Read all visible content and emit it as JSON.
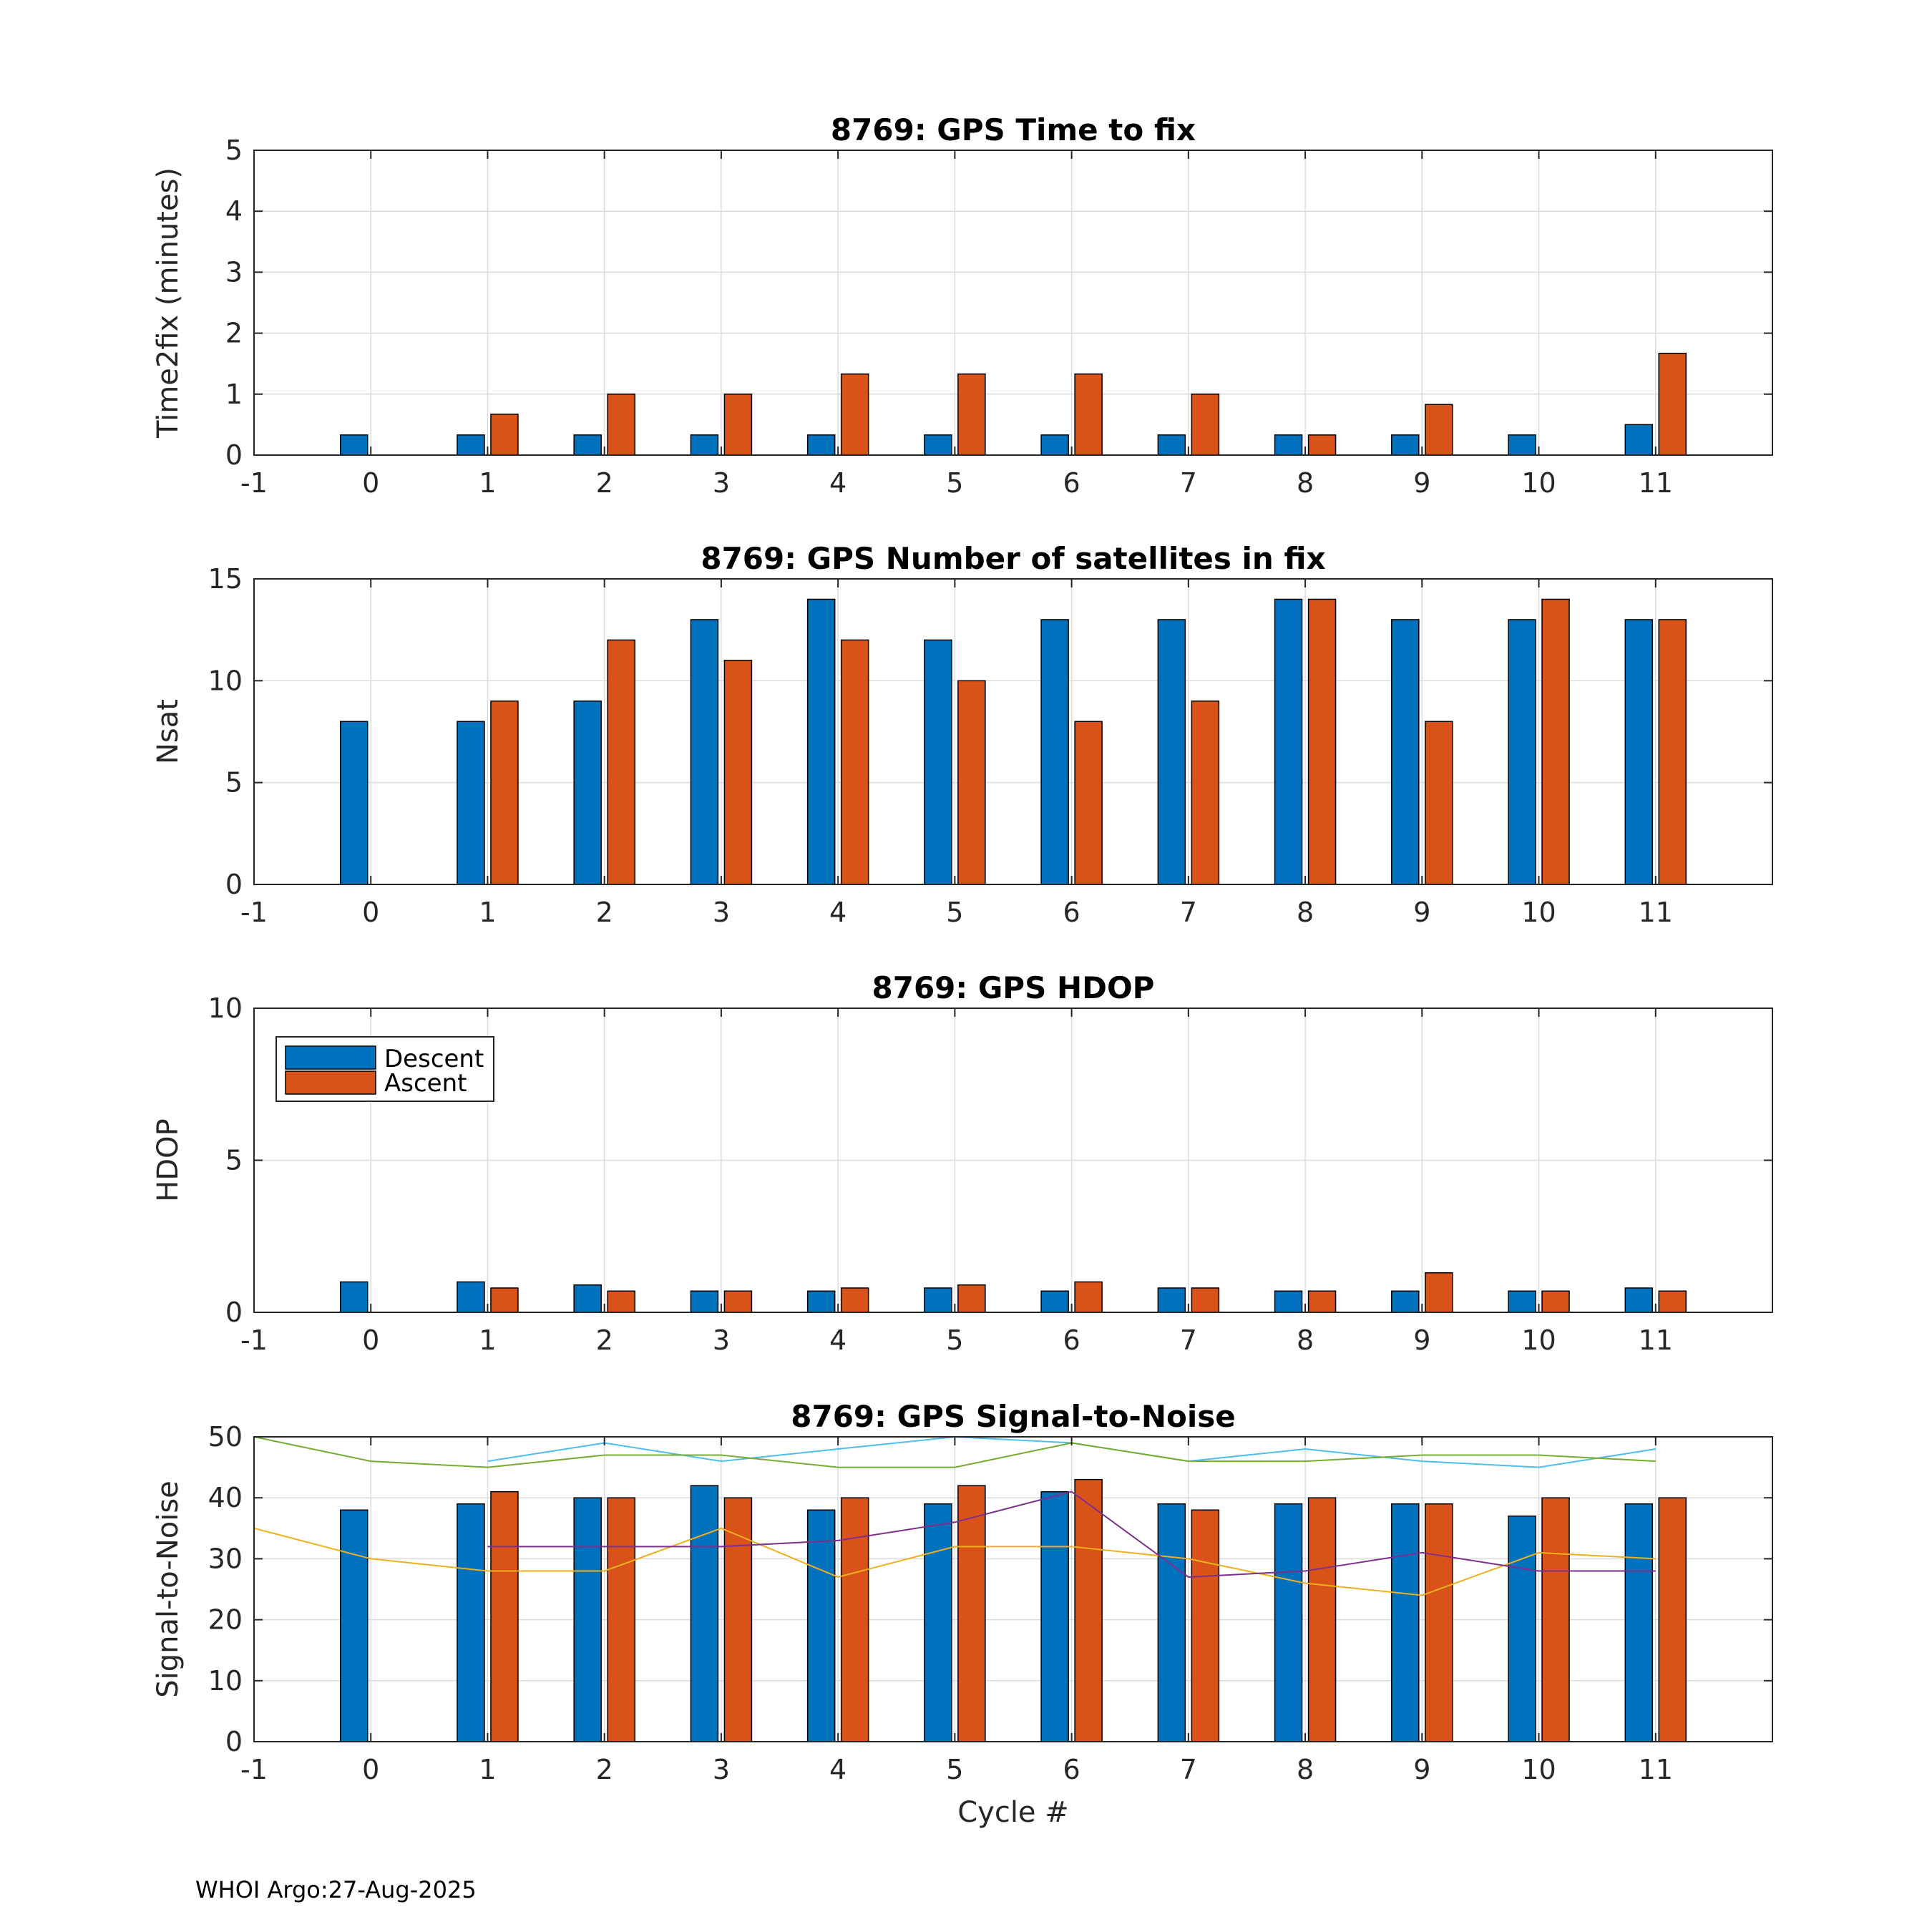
{
  "footer": "WHOI Argo:27-Aug-2025",
  "colors": {
    "descent": "#0072BD",
    "ascent": "#D95319",
    "grid": "#dcdcdc",
    "axis": "#262626",
    "snr_lines": [
      "#4DBEEE",
      "#77AC30",
      "#EDB120",
      "#7E2F8E"
    ]
  },
  "legend": {
    "entries": [
      "Descent",
      "Ascent"
    ],
    "location": "top-left of HDOP panel"
  },
  "chart_data": [
    {
      "type": "bar",
      "title": "8769: GPS Time to fix",
      "ylabel": "Time2fix (minutes)",
      "xlabel": "",
      "xlim": [
        -1,
        12
      ],
      "ylim": [
        0,
        5
      ],
      "xticks": [
        -1,
        0,
        1,
        2,
        3,
        4,
        5,
        6,
        7,
        8,
        9,
        10,
        11
      ],
      "yticks": [
        0,
        1,
        2,
        3,
        4,
        5
      ],
      "categories": [
        0,
        1,
        2,
        3,
        4,
        5,
        6,
        7,
        8,
        9,
        10,
        11
      ],
      "series": [
        {
          "name": "Descent",
          "values": [
            0.33,
            0.33,
            0.33,
            0.33,
            0.33,
            0.33,
            0.33,
            0.33,
            0.33,
            0.33,
            0.33,
            0.5
          ]
        },
        {
          "name": "Ascent",
          "values": [
            null,
            0.67,
            1.0,
            1.0,
            1.33,
            1.33,
            1.33,
            1.0,
            0.33,
            0.83,
            null,
            1.67
          ]
        }
      ],
      "grid": true
    },
    {
      "type": "bar",
      "title": "8769: GPS Number of satellites in fix",
      "ylabel": "Nsat",
      "xlabel": "",
      "xlim": [
        -1,
        12
      ],
      "ylim": [
        0,
        15
      ],
      "xticks": [
        -1,
        0,
        1,
        2,
        3,
        4,
        5,
        6,
        7,
        8,
        9,
        10,
        11
      ],
      "yticks": [
        0,
        5,
        10,
        15
      ],
      "categories": [
        0,
        1,
        2,
        3,
        4,
        5,
        6,
        7,
        8,
        9,
        10,
        11
      ],
      "series": [
        {
          "name": "Descent",
          "values": [
            8,
            8,
            9,
            13,
            14,
            12,
            13,
            13,
            14,
            13,
            13,
            13
          ]
        },
        {
          "name": "Ascent",
          "values": [
            null,
            9,
            12,
            11,
            12,
            10,
            8,
            9,
            14,
            8,
            14,
            13
          ]
        }
      ],
      "grid": true
    },
    {
      "type": "bar",
      "title": "8769: GPS HDOP",
      "ylabel": "HDOP",
      "xlabel": "",
      "xlim": [
        -1,
        12
      ],
      "ylim": [
        0,
        10
      ],
      "xticks": [
        -1,
        0,
        1,
        2,
        3,
        4,
        5,
        6,
        7,
        8,
        9,
        10,
        11
      ],
      "yticks": [
        0,
        5,
        10
      ],
      "categories": [
        0,
        1,
        2,
        3,
        4,
        5,
        6,
        7,
        8,
        9,
        10,
        11
      ],
      "series": [
        {
          "name": "Descent",
          "values": [
            1.0,
            1.0,
            0.9,
            0.7,
            0.7,
            0.8,
            0.7,
            0.8,
            0.7,
            0.7,
            0.7,
            0.8
          ]
        },
        {
          "name": "Ascent",
          "values": [
            null,
            0.8,
            0.7,
            0.7,
            0.8,
            0.9,
            1.0,
            0.8,
            0.7,
            1.3,
            0.7,
            0.7
          ]
        }
      ],
      "legend": [
        "Descent",
        "Ascent"
      ],
      "grid": true
    },
    {
      "type": "bar",
      "title": "8769: GPS Signal-to-Noise",
      "ylabel": "Signal-to-Noise",
      "xlabel": "Cycle #",
      "xlim": [
        -1,
        12
      ],
      "ylim": [
        0,
        50
      ],
      "xticks": [
        -1,
        0,
        1,
        2,
        3,
        4,
        5,
        6,
        7,
        8,
        9,
        10,
        11
      ],
      "yticks": [
        0,
        10,
        20,
        30,
        40,
        50
      ],
      "categories": [
        0,
        1,
        2,
        3,
        4,
        5,
        6,
        7,
        8,
        9,
        10,
        11
      ],
      "series": [
        {
          "name": "Descent",
          "values": [
            38,
            39,
            40,
            42,
            38,
            39,
            41,
            39,
            39,
            39,
            37,
            39
          ]
        },
        {
          "name": "Ascent",
          "values": [
            null,
            41,
            40,
            40,
            40,
            42,
            43,
            38,
            40,
            39,
            40,
            40
          ]
        }
      ],
      "lines": [
        {
          "name": "line-1",
          "x": [
            1,
            2,
            3,
            4,
            5,
            6,
            7,
            8,
            9,
            10,
            11
          ],
          "values": [
            46,
            49,
            46,
            48,
            50,
            49,
            46,
            48,
            46,
            45,
            48
          ]
        },
        {
          "name": "line-2",
          "x": [
            -1,
            0,
            1,
            2,
            3,
            4,
            5,
            6,
            7,
            8,
            9,
            10,
            11
          ],
          "values": [
            50,
            46,
            45,
            47,
            47,
            45,
            45,
            49,
            46,
            46,
            47,
            47,
            46
          ]
        },
        {
          "name": "line-3",
          "x": [
            -1,
            0,
            1,
            2,
            3,
            4,
            5,
            6,
            7,
            8,
            9,
            10,
            11
          ],
          "values": [
            35,
            30,
            28,
            28,
            35,
            27,
            32,
            32,
            30,
            26,
            24,
            31,
            30
          ]
        },
        {
          "name": "line-4",
          "x": [
            1,
            2,
            3,
            4,
            5,
            6,
            7,
            8,
            9,
            10,
            11
          ],
          "values": [
            32,
            32,
            32,
            33,
            36,
            41,
            27,
            28,
            31,
            28,
            28
          ]
        }
      ],
      "grid": true
    }
  ]
}
